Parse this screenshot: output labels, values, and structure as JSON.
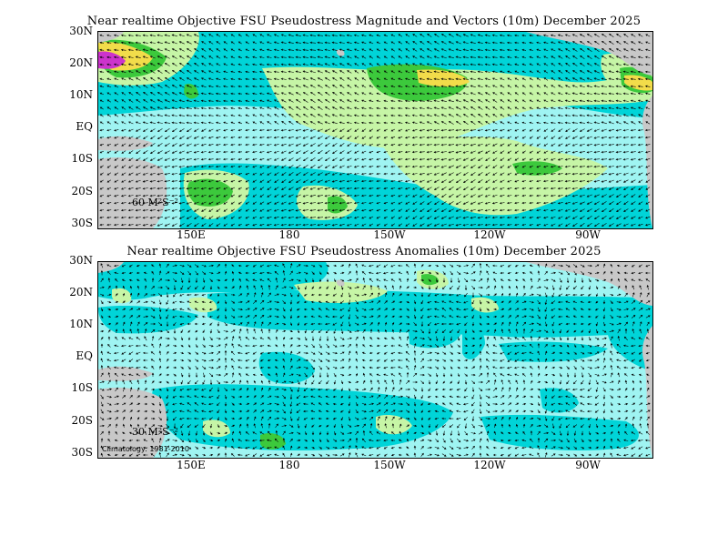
{
  "panels": [
    {
      "title": "Near realtime Objective FSU Pseudostress Magnitude and Vectors (10m) December 2025",
      "scale_label": "60 M²S⁻²",
      "lat_labels": [
        "30N",
        "20N",
        "10N",
        "EQ",
        "10S",
        "20S",
        "30S"
      ],
      "lon_labels": [
        "150E",
        "180",
        "150W",
        "120W",
        "90W"
      ]
    },
    {
      "title": "Near realtime Objective FSU Pseudostress Anomalies (10m) December 2025",
      "scale_label": "30 M²S⁻²",
      "footnote": "Climatology: 1981-2010",
      "lat_labels": [
        "30N",
        "20N",
        "10N",
        "EQ",
        "10S",
        "20S",
        "30S"
      ],
      "lon_labels": [
        "150E",
        "180",
        "150W",
        "120W",
        "90W"
      ]
    }
  ],
  "colors": {
    "land": "#c8c8c8",
    "level_1": "#9ff4f2",
    "level_2": "#00d4d8",
    "level_3": "#c6f5a6",
    "level_4": "#3cc93c",
    "level_5": "#f2dc4a",
    "level_6": "#cc33cc",
    "vector": "#000000"
  }
}
